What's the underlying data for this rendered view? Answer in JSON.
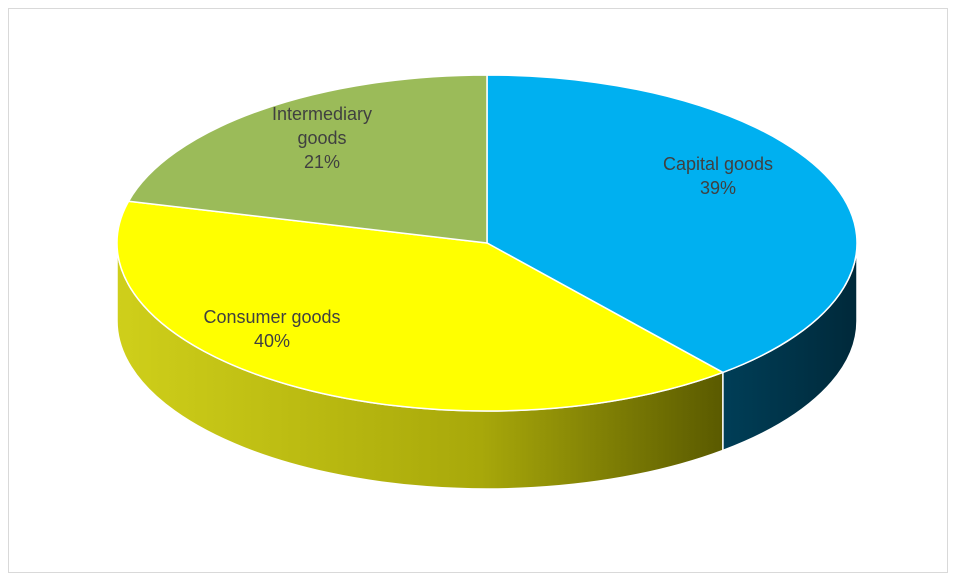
{
  "chart_data": {
    "type": "pie",
    "style": "3d",
    "slices": [
      {
        "label": "Capital goods",
        "value": 39,
        "value_label": "39%",
        "top_color": "#00b0f0",
        "side_color": "#00374c"
      },
      {
        "label": "Consumer goods",
        "value": 40,
        "value_label": "40%",
        "top_color": "#ffff00",
        "side_color": "#d7d70a"
      },
      {
        "label": "Intermediary goods",
        "value": 21,
        "value_label": "21%",
        "top_color": "#9bbb59",
        "side_color": "#6f8a3c"
      }
    ],
    "label_lines": {
      "Capital goods": [
        "Capital goods",
        "39%"
      ],
      "Consumer goods": [
        "Consumer goods",
        "40%"
      ],
      "Intermediary goods": [
        "Intermediary",
        "goods",
        "21%"
      ]
    }
  }
}
